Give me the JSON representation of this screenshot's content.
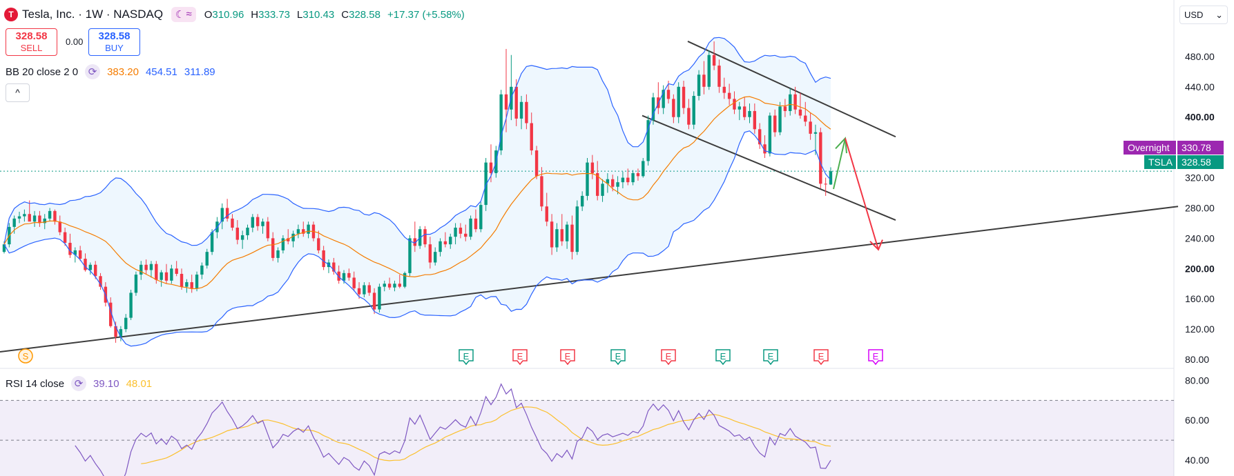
{
  "header": {
    "logo": "T",
    "title": "Tesla, Inc. · 1W · NASDAQ",
    "badges": [
      "☾",
      "≈"
    ],
    "ohlc": [
      {
        "k": "O",
        "v": "310.96"
      },
      {
        "k": "H",
        "v": "333.73"
      },
      {
        "k": "L",
        "v": "310.43"
      },
      {
        "k": "C",
        "v": "328.58"
      }
    ],
    "change": "+17.37 (+5.58%)"
  },
  "trade": {
    "sell_price": "328.58",
    "sell_label": "SELL",
    "spread": "0.00",
    "buy_price": "328.58",
    "buy_label": "BUY"
  },
  "bb_legend": {
    "name": "BB 20 close 2 0",
    "basis": "383.20",
    "upper": "454.51",
    "lower": "311.89"
  },
  "collapse_icon": "^",
  "currency": {
    "label": "USD",
    "chevron": "⌄"
  },
  "rsi_legend": {
    "name": "RSI 14 close",
    "rsi": "39.10",
    "ma": "48.01"
  },
  "price_tags": {
    "overnight_label": "Overnight",
    "overnight_value": "330.78",
    "ticker_label": "TSLA",
    "ticker_value": "328.58"
  },
  "events": {
    "split": "S",
    "earnings": [
      "E",
      "E",
      "E",
      "E",
      "E",
      "E",
      "E",
      "E",
      "E"
    ]
  },
  "colors": {
    "up": "#089981",
    "down": "#f23645",
    "bb_basis": "#f57c00",
    "bb_band": "#2962ff",
    "rsi": "#7e57c2",
    "rsi_ma": "#fbc02d",
    "overnight": "#9c27b0"
  },
  "chart_data": [
    {
      "type": "candlestick",
      "subtype": "price with bollinger bands",
      "ylim": [
        70,
        520
      ],
      "y_ticks": [
        80,
        120,
        160,
        200,
        240,
        280,
        320,
        360,
        400,
        440,
        480
      ],
      "bold_ticks": [
        200,
        400
      ],
      "ref_price": 328.58,
      "candles": [
        {
          "o": 222,
          "h": 236,
          "l": 220,
          "c": 232
        },
        {
          "o": 232,
          "h": 260,
          "l": 228,
          "c": 255
        },
        {
          "o": 255,
          "h": 270,
          "l": 246,
          "c": 266
        },
        {
          "o": 266,
          "h": 275,
          "l": 260,
          "c": 269
        },
        {
          "o": 269,
          "h": 278,
          "l": 262,
          "c": 272
        },
        {
          "o": 272,
          "h": 290,
          "l": 264,
          "c": 262
        },
        {
          "o": 262,
          "h": 276,
          "l": 255,
          "c": 270
        },
        {
          "o": 270,
          "h": 276,
          "l": 255,
          "c": 260
        },
        {
          "o": 260,
          "h": 272,
          "l": 252,
          "c": 266
        },
        {
          "o": 266,
          "h": 280,
          "l": 262,
          "c": 276
        },
        {
          "o": 276,
          "h": 278,
          "l": 258,
          "c": 262
        },
        {
          "o": 262,
          "h": 270,
          "l": 244,
          "c": 248
        },
        {
          "o": 248,
          "h": 254,
          "l": 230,
          "c": 234
        },
        {
          "o": 234,
          "h": 246,
          "l": 214,
          "c": 218
        },
        {
          "o": 218,
          "h": 228,
          "l": 208,
          "c": 224
        },
        {
          "o": 224,
          "h": 230,
          "l": 210,
          "c": 213
        },
        {
          "o": 213,
          "h": 220,
          "l": 196,
          "c": 198
        },
        {
          "o": 198,
          "h": 208,
          "l": 192,
          "c": 205
        },
        {
          "o": 205,
          "h": 210,
          "l": 186,
          "c": 190
        },
        {
          "o": 190,
          "h": 194,
          "l": 172,
          "c": 176
        },
        {
          "o": 176,
          "h": 182,
          "l": 150,
          "c": 155
        },
        {
          "o": 155,
          "h": 162,
          "l": 122,
          "c": 124
        },
        {
          "o": 124,
          "h": 130,
          "l": 102,
          "c": 110
        },
        {
          "o": 110,
          "h": 124,
          "l": 104,
          "c": 120
        },
        {
          "o": 120,
          "h": 140,
          "l": 116,
          "c": 135
        },
        {
          "o": 135,
          "h": 172,
          "l": 132,
          "c": 168
        },
        {
          "o": 168,
          "h": 196,
          "l": 164,
          "c": 192
        },
        {
          "o": 192,
          "h": 210,
          "l": 185,
          "c": 205
        },
        {
          "o": 205,
          "h": 212,
          "l": 192,
          "c": 198
        },
        {
          "o": 198,
          "h": 210,
          "l": 188,
          "c": 206
        },
        {
          "o": 206,
          "h": 210,
          "l": 180,
          "c": 185
        },
        {
          "o": 185,
          "h": 198,
          "l": 176,
          "c": 195
        },
        {
          "o": 195,
          "h": 206,
          "l": 180,
          "c": 184
        },
        {
          "o": 184,
          "h": 205,
          "l": 180,
          "c": 200
        },
        {
          "o": 200,
          "h": 210,
          "l": 190,
          "c": 193
        },
        {
          "o": 193,
          "h": 200,
          "l": 172,
          "c": 176
        },
        {
          "o": 176,
          "h": 186,
          "l": 168,
          "c": 182
        },
        {
          "o": 182,
          "h": 192,
          "l": 168,
          "c": 174
        },
        {
          "o": 174,
          "h": 196,
          "l": 170,
          "c": 192
        },
        {
          "o": 192,
          "h": 208,
          "l": 186,
          "c": 204
        },
        {
          "o": 204,
          "h": 226,
          "l": 200,
          "c": 222
        },
        {
          "o": 222,
          "h": 252,
          "l": 218,
          "c": 248
        },
        {
          "o": 248,
          "h": 268,
          "l": 240,
          "c": 262
        },
        {
          "o": 262,
          "h": 286,
          "l": 252,
          "c": 280
        },
        {
          "o": 280,
          "h": 292,
          "l": 262,
          "c": 266
        },
        {
          "o": 266,
          "h": 272,
          "l": 250,
          "c": 254
        },
        {
          "o": 254,
          "h": 264,
          "l": 232,
          "c": 238
        },
        {
          "o": 238,
          "h": 250,
          "l": 226,
          "c": 244
        },
        {
          "o": 244,
          "h": 258,
          "l": 238,
          "c": 254
        },
        {
          "o": 254,
          "h": 272,
          "l": 248,
          "c": 268
        },
        {
          "o": 268,
          "h": 272,
          "l": 250,
          "c": 256
        },
        {
          "o": 256,
          "h": 266,
          "l": 246,
          "c": 262
        },
        {
          "o": 262,
          "h": 268,
          "l": 236,
          "c": 240
        },
        {
          "o": 240,
          "h": 248,
          "l": 210,
          "c": 214
        },
        {
          "o": 214,
          "h": 228,
          "l": 208,
          "c": 224
        },
        {
          "o": 224,
          "h": 244,
          "l": 220,
          "c": 240
        },
        {
          "o": 240,
          "h": 252,
          "l": 232,
          "c": 236
        },
        {
          "o": 236,
          "h": 250,
          "l": 228,
          "c": 246
        },
        {
          "o": 246,
          "h": 258,
          "l": 240,
          "c": 252
        },
        {
          "o": 252,
          "h": 262,
          "l": 242,
          "c": 246
        },
        {
          "o": 246,
          "h": 262,
          "l": 240,
          "c": 258
        },
        {
          "o": 258,
          "h": 262,
          "l": 236,
          "c": 240
        },
        {
          "o": 240,
          "h": 250,
          "l": 220,
          "c": 224
        },
        {
          "o": 224,
          "h": 230,
          "l": 198,
          "c": 202
        },
        {
          "o": 202,
          "h": 212,
          "l": 194,
          "c": 208
        },
        {
          "o": 208,
          "h": 214,
          "l": 192,
          "c": 196
        },
        {
          "o": 196,
          "h": 204,
          "l": 180,
          "c": 184
        },
        {
          "o": 184,
          "h": 198,
          "l": 180,
          "c": 194
        },
        {
          "o": 194,
          "h": 200,
          "l": 184,
          "c": 188
        },
        {
          "o": 188,
          "h": 196,
          "l": 170,
          "c": 174
        },
        {
          "o": 174,
          "h": 182,
          "l": 160,
          "c": 166
        },
        {
          "o": 166,
          "h": 182,
          "l": 162,
          "c": 178
        },
        {
          "o": 178,
          "h": 182,
          "l": 164,
          "c": 168
        },
        {
          "o": 168,
          "h": 174,
          "l": 140,
          "c": 146
        },
        {
          "o": 146,
          "h": 180,
          "l": 142,
          "c": 176
        },
        {
          "o": 176,
          "h": 184,
          "l": 170,
          "c": 180
        },
        {
          "o": 180,
          "h": 188,
          "l": 172,
          "c": 175
        },
        {
          "o": 175,
          "h": 184,
          "l": 170,
          "c": 180
        },
        {
          "o": 180,
          "h": 192,
          "l": 174,
          "c": 176
        },
        {
          "o": 176,
          "h": 196,
          "l": 174,
          "c": 194
        },
        {
          "o": 194,
          "h": 244,
          "l": 190,
          "c": 240
        },
        {
          "o": 240,
          "h": 262,
          "l": 222,
          "c": 230
        },
        {
          "o": 230,
          "h": 256,
          "l": 226,
          "c": 252
        },
        {
          "o": 252,
          "h": 256,
          "l": 228,
          "c": 232
        },
        {
          "o": 232,
          "h": 242,
          "l": 200,
          "c": 208
        },
        {
          "o": 208,
          "h": 228,
          "l": 204,
          "c": 222
        },
        {
          "o": 222,
          "h": 240,
          "l": 216,
          "c": 236
        },
        {
          "o": 236,
          "h": 248,
          "l": 228,
          "c": 232
        },
        {
          "o": 232,
          "h": 246,
          "l": 226,
          "c": 242
        },
        {
          "o": 242,
          "h": 260,
          "l": 232,
          "c": 254
        },
        {
          "o": 254,
          "h": 260,
          "l": 240,
          "c": 246
        },
        {
          "o": 246,
          "h": 258,
          "l": 236,
          "c": 242
        },
        {
          "o": 242,
          "h": 270,
          "l": 238,
          "c": 266
        },
        {
          "o": 266,
          "h": 278,
          "l": 248,
          "c": 252
        },
        {
          "o": 252,
          "h": 288,
          "l": 248,
          "c": 284
        },
        {
          "o": 284,
          "h": 346,
          "l": 276,
          "c": 340
        },
        {
          "o": 340,
          "h": 364,
          "l": 314,
          "c": 326
        },
        {
          "o": 326,
          "h": 362,
          "l": 320,
          "c": 356
        },
        {
          "o": 356,
          "h": 436,
          "l": 350,
          "c": 430
        },
        {
          "o": 430,
          "h": 490,
          "l": 380,
          "c": 410
        },
        {
          "o": 410,
          "h": 482,
          "l": 396,
          "c": 440
        },
        {
          "o": 440,
          "h": 450,
          "l": 388,
          "c": 398
        },
        {
          "o": 398,
          "h": 428,
          "l": 384,
          "c": 420
        },
        {
          "o": 420,
          "h": 430,
          "l": 384,
          "c": 392
        },
        {
          "o": 392,
          "h": 406,
          "l": 350,
          "c": 356
        },
        {
          "o": 356,
          "h": 362,
          "l": 318,
          "c": 322
        },
        {
          "o": 322,
          "h": 334,
          "l": 276,
          "c": 282
        },
        {
          "o": 282,
          "h": 300,
          "l": 256,
          "c": 262
        },
        {
          "o": 262,
          "h": 272,
          "l": 218,
          "c": 228
        },
        {
          "o": 228,
          "h": 260,
          "l": 222,
          "c": 252
        },
        {
          "o": 252,
          "h": 272,
          "l": 230,
          "c": 236
        },
        {
          "o": 236,
          "h": 262,
          "l": 226,
          "c": 258
        },
        {
          "o": 258,
          "h": 270,
          "l": 212,
          "c": 222
        },
        {
          "o": 222,
          "h": 290,
          "l": 218,
          "c": 282
        },
        {
          "o": 282,
          "h": 302,
          "l": 276,
          "c": 296
        },
        {
          "o": 296,
          "h": 346,
          "l": 290,
          "c": 340
        },
        {
          "o": 340,
          "h": 350,
          "l": 318,
          "c": 326
        },
        {
          "o": 326,
          "h": 342,
          "l": 290,
          "c": 296
        },
        {
          "o": 296,
          "h": 318,
          "l": 288,
          "c": 312
        },
        {
          "o": 312,
          "h": 326,
          "l": 300,
          "c": 318
        },
        {
          "o": 318,
          "h": 324,
          "l": 302,
          "c": 308
        },
        {
          "o": 308,
          "h": 322,
          "l": 298,
          "c": 314
        },
        {
          "o": 314,
          "h": 328,
          "l": 306,
          "c": 320
        },
        {
          "o": 320,
          "h": 332,
          "l": 310,
          "c": 314
        },
        {
          "o": 314,
          "h": 330,
          "l": 310,
          "c": 326
        },
        {
          "o": 326,
          "h": 332,
          "l": 316,
          "c": 322
        },
        {
          "o": 322,
          "h": 346,
          "l": 320,
          "c": 342
        },
        {
          "o": 342,
          "h": 402,
          "l": 336,
          "c": 396
        },
        {
          "o": 396,
          "h": 432,
          "l": 390,
          "c": 426
        },
        {
          "o": 426,
          "h": 446,
          "l": 404,
          "c": 412
        },
        {
          "o": 412,
          "h": 442,
          "l": 404,
          "c": 436
        },
        {
          "o": 436,
          "h": 448,
          "l": 418,
          "c": 424
        },
        {
          "o": 424,
          "h": 430,
          "l": 392,
          "c": 400
        },
        {
          "o": 400,
          "h": 446,
          "l": 392,
          "c": 440
        },
        {
          "o": 440,
          "h": 448,
          "l": 404,
          "c": 412
        },
        {
          "o": 412,
          "h": 424,
          "l": 384,
          "c": 390
        },
        {
          "o": 390,
          "h": 434,
          "l": 384,
          "c": 428
        },
        {
          "o": 428,
          "h": 462,
          "l": 422,
          "c": 456
        },
        {
          "o": 456,
          "h": 474,
          "l": 430,
          "c": 440
        },
        {
          "o": 440,
          "h": 488,
          "l": 436,
          "c": 482
        },
        {
          "o": 482,
          "h": 500,
          "l": 462,
          "c": 468
        },
        {
          "o": 468,
          "h": 476,
          "l": 432,
          "c": 440
        },
        {
          "o": 440,
          "h": 452,
          "l": 424,
          "c": 432
        },
        {
          "o": 432,
          "h": 444,
          "l": 416,
          "c": 424
        },
        {
          "o": 424,
          "h": 434,
          "l": 404,
          "c": 410
        },
        {
          "o": 410,
          "h": 420,
          "l": 396,
          "c": 414
        },
        {
          "o": 414,
          "h": 426,
          "l": 396,
          "c": 400
        },
        {
          "o": 400,
          "h": 418,
          "l": 392,
          "c": 408
        },
        {
          "o": 408,
          "h": 418,
          "l": 378,
          "c": 384
        },
        {
          "o": 384,
          "h": 392,
          "l": 358,
          "c": 364
        },
        {
          "o": 364,
          "h": 376,
          "l": 346,
          "c": 352
        },
        {
          "o": 352,
          "h": 406,
          "l": 348,
          "c": 402
        },
        {
          "o": 402,
          "h": 410,
          "l": 374,
          "c": 380
        },
        {
          "o": 380,
          "h": 420,
          "l": 376,
          "c": 414
        },
        {
          "o": 414,
          "h": 424,
          "l": 400,
          "c": 408
        },
        {
          "o": 408,
          "h": 438,
          "l": 402,
          "c": 430
        },
        {
          "o": 430,
          "h": 440,
          "l": 404,
          "c": 410
        },
        {
          "o": 410,
          "h": 432,
          "l": 398,
          "c": 402
        },
        {
          "o": 402,
          "h": 420,
          "l": 388,
          "c": 394
        },
        {
          "o": 394,
          "h": 406,
          "l": 370,
          "c": 378
        },
        {
          "o": 378,
          "h": 390,
          "l": 350,
          "c": 380
        },
        {
          "o": 380,
          "h": 386,
          "l": 306,
          "c": 312
        },
        {
          "o": 312,
          "h": 320,
          "l": 296,
          "c": 311
        },
        {
          "o": 310.96,
          "h": 333.73,
          "l": 310.43,
          "c": 328.58
        }
      ]
    },
    {
      "type": "line",
      "subtype": "rsi",
      "ylim": [
        32,
        84
      ],
      "y_ticks": [
        40,
        60,
        80
      ],
      "bands": [
        30,
        50,
        70
      ],
      "ma_period": 14
    }
  ]
}
